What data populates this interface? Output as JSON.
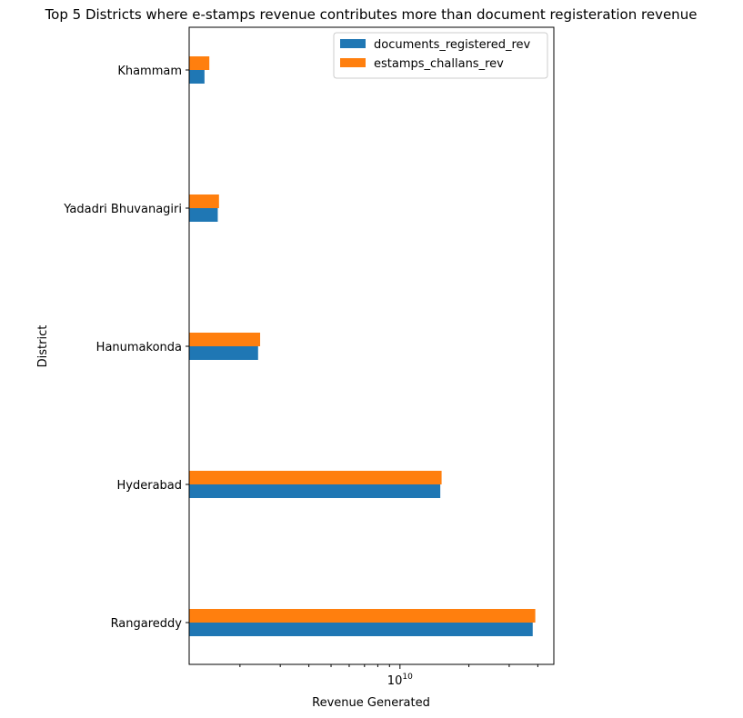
{
  "chart_data": {
    "type": "bar",
    "orientation": "horizontal",
    "title": "Top 5 Districts where e-stamps revenue contributes more than document registeration revenue",
    "xlabel": "Revenue Generated",
    "ylabel": "District",
    "x_scale": "log",
    "x_tick_label": {
      "base": "10",
      "exponent": "10"
    },
    "xlim": [
      1200000000,
      47000000000
    ],
    "categories": [
      "Rangareddy",
      "Hyderabad",
      "Hanumakonda",
      "Yadadri Bhuvanagiri",
      "Khammam"
    ],
    "series": [
      {
        "name": "documents_registered_rev",
        "color": "#1f77b4",
        "values": [
          38000000000,
          15000000000,
          2400000000,
          1600000000,
          1400000000
        ]
      },
      {
        "name": "estamps_challans_rev",
        "color": "#ff7f0e",
        "values": [
          39000000000,
          15200000000,
          2450000000,
          1620000000,
          1470000000
        ]
      }
    ],
    "legend_position": "top-right",
    "grid": false
  }
}
